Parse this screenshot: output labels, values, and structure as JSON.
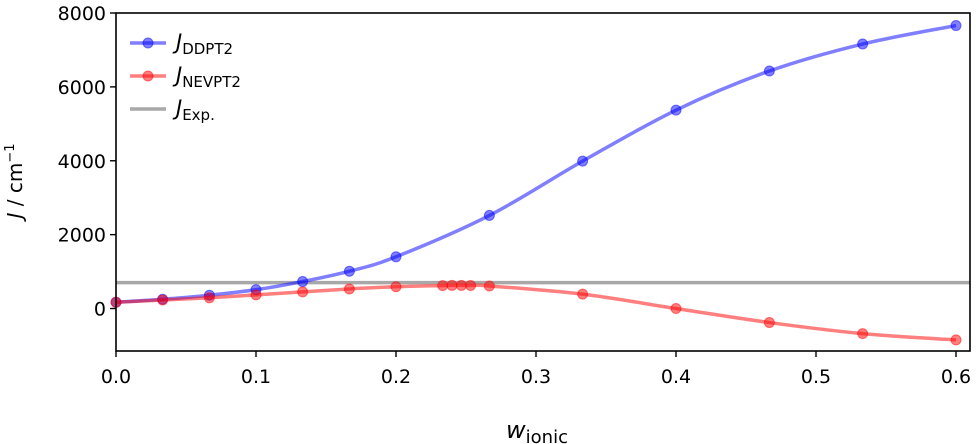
{
  "chart_data": {
    "type": "line",
    "xlabel": {
      "main": "w",
      "sub": "ionic"
    },
    "ylabel": {
      "main": "J",
      "rest": " / cm",
      "sup": "−1"
    },
    "xlim": [
      0.0,
      0.61
    ],
    "ylim": [
      -1150,
      8000
    ],
    "x_ticks": [
      0.0,
      0.1,
      0.2,
      0.3,
      0.4,
      0.5,
      0.6
    ],
    "x_tick_labels": [
      "0.0",
      "0.1",
      "0.2",
      "0.3",
      "0.4",
      "0.5",
      "0.6"
    ],
    "y_ticks": [
      0,
      2000,
      4000,
      6000,
      8000
    ],
    "y_tick_labels": [
      "0",
      "2000",
      "4000",
      "6000",
      "8000"
    ],
    "grid": false,
    "legend_position": "top-left",
    "series": [
      {
        "legend_main": "J",
        "legend_sub": "DDPT2",
        "color": "#0000ff",
        "x": [
          0.0,
          0.0333,
          0.0667,
          0.1,
          0.1333,
          0.1667,
          0.2,
          0.2667,
          0.3333,
          0.4,
          0.4667,
          0.5333,
          0.6
        ],
        "y": [
          170,
          250,
          360,
          510,
          730,
          1010,
          1400,
          2520,
          3990,
          5370,
          6430,
          7160,
          7660
        ]
      },
      {
        "legend_main": "J",
        "legend_sub": "NEVPT2",
        "color": "#ff0000",
        "x": [
          0.0,
          0.0333,
          0.0667,
          0.1,
          0.1333,
          0.1667,
          0.2,
          0.2333,
          0.24,
          0.2467,
          0.2533,
          0.2667,
          0.3333,
          0.4,
          0.4667,
          0.5333,
          0.6
        ],
        "y": [
          170,
          230,
          290,
          370,
          450,
          530,
          590,
          620,
          625,
          625,
          622,
          610,
          390,
          0,
          -380,
          -680,
          -850
        ]
      },
      {
        "legend_main": "J",
        "legend_sub": "Exp.",
        "color": "#999999",
        "y_constant": 700
      }
    ]
  }
}
